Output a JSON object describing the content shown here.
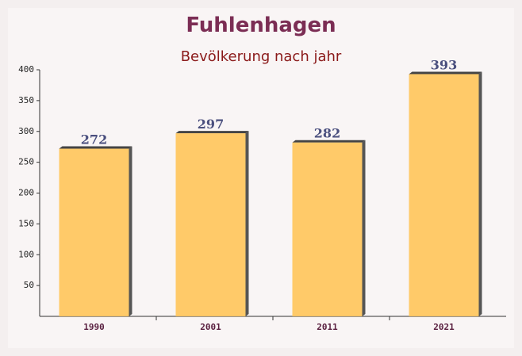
{
  "chart_data": {
    "type": "bar",
    "title": "Fuhlenhagen",
    "subtitle": "Bevölkerung nach jahr",
    "categories": [
      "1990",
      "2001",
      "2011",
      "2021"
    ],
    "values": [
      272,
      297,
      282,
      393
    ],
    "color": "#ffc55a",
    "ylim": [
      0,
      400
    ],
    "yticks": [
      50,
      100,
      150,
      200,
      250,
      300,
      350,
      400
    ]
  }
}
